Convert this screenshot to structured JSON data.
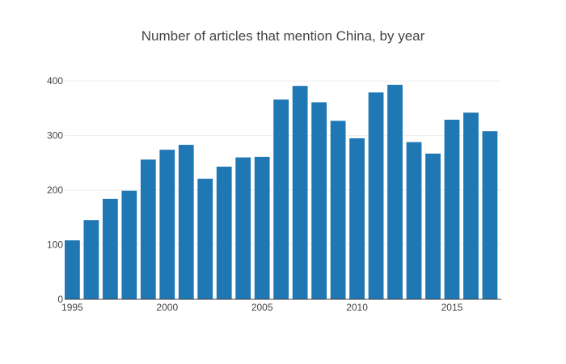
{
  "chart_data": {
    "type": "bar",
    "title": "Number of articles that mention China, by year",
    "xlabel": "",
    "ylabel": "",
    "categories": [
      1995,
      1996,
      1997,
      1998,
      1999,
      2000,
      2001,
      2002,
      2003,
      2004,
      2005,
      2006,
      2007,
      2008,
      2009,
      2010,
      2011,
      2012,
      2013,
      2014,
      2015,
      2016,
      2017
    ],
    "values": [
      108,
      145,
      184,
      199,
      256,
      274,
      283,
      221,
      243,
      260,
      261,
      366,
      391,
      361,
      327,
      295,
      379,
      393,
      288,
      267,
      329,
      342,
      308
    ],
    "xlim": [
      1994.6,
      2017.6
    ],
    "ylim": [
      0,
      415
    ],
    "x_ticks": [
      1995,
      2000,
      2005,
      2010,
      2015
    ],
    "y_ticks": [
      0,
      100,
      200,
      300,
      400
    ],
    "grid": {
      "y": true,
      "x": false
    },
    "legend": "none",
    "colors": {
      "bar": "#1f77b4",
      "grid": "#eeeeee",
      "axis": "#444444",
      "text": "#444444"
    }
  }
}
